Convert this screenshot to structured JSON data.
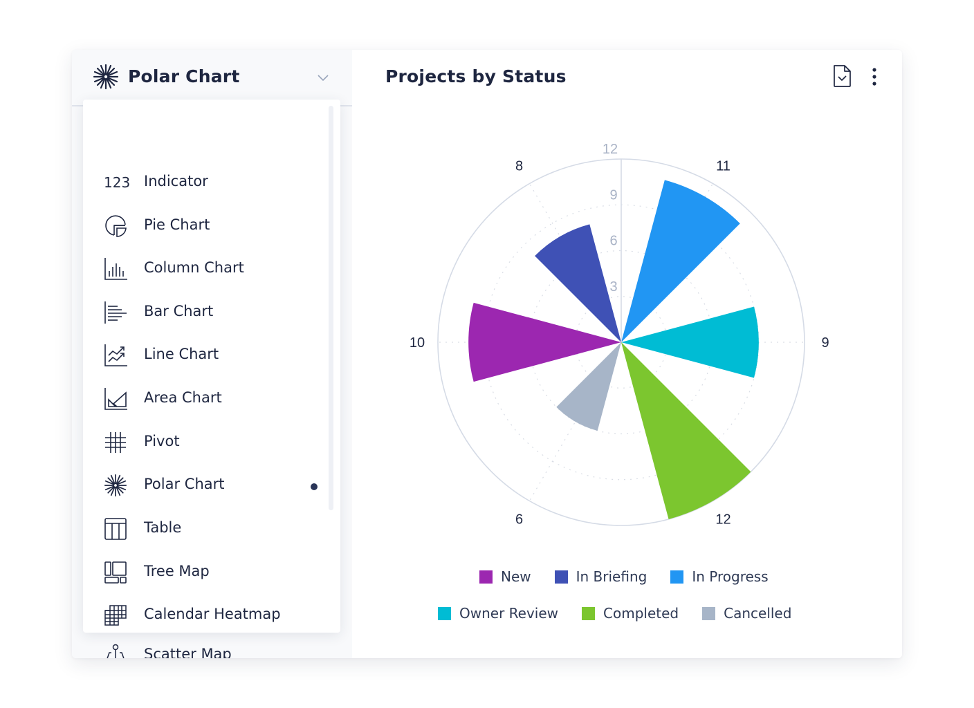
{
  "selector": {
    "label": "Polar Chart",
    "icon": "polar-chart-icon",
    "chevron": "chevron-down-icon"
  },
  "menu": {
    "items": [
      {
        "label": "Indicator",
        "icon": "indicator-icon",
        "icon_text": "123",
        "selected": false
      },
      {
        "label": "Pie Chart",
        "icon": "pie-chart-icon",
        "selected": false
      },
      {
        "label": "Column Chart",
        "icon": "column-chart-icon",
        "selected": false
      },
      {
        "label": "Bar Chart",
        "icon": "bar-chart-icon",
        "selected": false
      },
      {
        "label": "Line Chart",
        "icon": "line-chart-icon",
        "selected": false
      },
      {
        "label": "Area Chart",
        "icon": "area-chart-icon",
        "selected": false
      },
      {
        "label": "Pivot",
        "icon": "pivot-icon",
        "selected": false
      },
      {
        "label": "Polar Chart",
        "icon": "polar-chart-icon",
        "selected": true
      },
      {
        "label": "Table",
        "icon": "table-icon",
        "selected": false
      },
      {
        "label": "Tree Map",
        "icon": "tree-map-icon",
        "selected": false
      },
      {
        "label": "Calendar Heatmap",
        "icon": "calendar-heatmap-icon",
        "selected": false
      },
      {
        "label": "Scatter Map",
        "icon": "scatter-map-icon",
        "selected": false
      }
    ]
  },
  "header": {
    "title": "Projects by Status",
    "export_icon": "file-check-icon",
    "more_icon": "more-vertical-icon"
  },
  "colors": {
    "text": "#1e2640",
    "axis": "#d5dbe6",
    "tick_text": "#a9b3c6"
  },
  "chart_data": {
    "type": "polar-bar",
    "title": "Projects by Status",
    "categories": [
      "In Progress",
      "Owner Review",
      "Completed",
      "Cancelled",
      "New",
      "In Briefing"
    ],
    "values": [
      11,
      9,
      12,
      6,
      10,
      8
    ],
    "angles_deg": [
      30,
      90,
      150,
      210,
      270,
      330
    ],
    "colors": [
      "#2196f3",
      "#00bcd4",
      "#7cc62f",
      "#a7b5c8",
      "#9c27b0",
      "#3f51b5"
    ],
    "value_labels": [
      "11",
      "9",
      "12",
      "6",
      "10",
      "8"
    ],
    "radial_ticks": [
      3,
      6,
      9,
      12
    ],
    "radial_range": [
      0,
      12
    ],
    "grid": true,
    "legend_position": "bottom",
    "legend": [
      {
        "label": "New",
        "color": "#9c27b0"
      },
      {
        "label": "In Briefing",
        "color": "#3f51b5"
      },
      {
        "label": "In Progress",
        "color": "#2196f3"
      },
      {
        "label": "Owner Review",
        "color": "#00bcd4"
      },
      {
        "label": "Completed",
        "color": "#7cc62f"
      },
      {
        "label": "Cancelled",
        "color": "#a7b5c8"
      }
    ]
  }
}
